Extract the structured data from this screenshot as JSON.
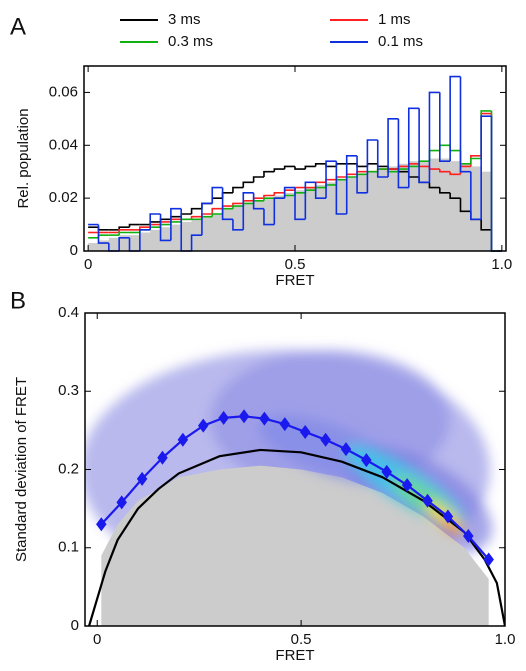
{
  "chart_data": [
    {
      "type": "histogram",
      "panel": "A",
      "xlabel": "FRET",
      "ylabel": "Rel. population",
      "bins": [
        0,
        0.025,
        0.05,
        0.075,
        0.1,
        0.125,
        0.15,
        0.175,
        0.2,
        0.225,
        0.25,
        0.275,
        0.3,
        0.325,
        0.35,
        0.375,
        0.4,
        0.425,
        0.45,
        0.475,
        0.5,
        0.525,
        0.55,
        0.575,
        0.6,
        0.625,
        0.65,
        0.675,
        0.7,
        0.725,
        0.75,
        0.775,
        0.8,
        0.825,
        0.85,
        0.875,
        0.9,
        0.925,
        0.95,
        0.975,
        1.0
      ],
      "series": [
        {
          "name": "3 ms",
          "color": "#000000",
          "values": [
            0.009,
            0.008,
            0.008,
            0.009,
            0.01,
            0.01,
            0.011,
            0.012,
            0.013,
            0.014,
            0.016,
            0.018,
            0.02,
            0.022,
            0.024,
            0.026,
            0.028,
            0.03,
            0.031,
            0.032,
            0.031,
            0.032,
            0.033,
            0.032,
            0.033,
            0.033,
            0.032,
            0.033,
            0.032,
            0.031,
            0.03,
            0.028,
            0.026,
            0.024,
            0.022,
            0.02,
            0.015,
            0.012,
            0.008,
            0
          ]
        },
        {
          "name": "1 ms",
          "color": "#ff2020",
          "values": [
            0.007,
            0.007,
            0.007,
            0.008,
            0.008,
            0.009,
            0.01,
            0.011,
            0.012,
            0.012,
            0.013,
            0.014,
            0.016,
            0.017,
            0.018,
            0.019,
            0.02,
            0.021,
            0.022,
            0.023,
            0.024,
            0.024,
            0.026,
            0.027,
            0.028,
            0.029,
            0.03,
            0.03,
            0.031,
            0.031,
            0.032,
            0.033,
            0.032,
            0.031,
            0.03,
            0.029,
            0.032,
            0.036,
            0.052,
            0
          ]
        },
        {
          "name": "0.3 ms",
          "color": "#10b010",
          "values": [
            0.005,
            0.006,
            0.006,
            0.007,
            0.007,
            0.008,
            0.009,
            0.01,
            0.011,
            0.012,
            0.012,
            0.013,
            0.014,
            0.016,
            0.017,
            0.018,
            0.019,
            0.02,
            0.02,
            0.021,
            0.022,
            0.023,
            0.024,
            0.025,
            0.027,
            0.028,
            0.029,
            0.03,
            0.031,
            0.03,
            0.031,
            0.032,
            0.034,
            0.038,
            0.04,
            0.038,
            0.033,
            0.035,
            0.053,
            0
          ]
        },
        {
          "name": "0.1 ms",
          "color": "#1030e0",
          "values": [
            0.01,
            0.003,
            0,
            0.005,
            0,
            0.008,
            0.014,
            0.004,
            0.016,
            0,
            0.006,
            0.018,
            0.024,
            0.012,
            0.008,
            0.022,
            0.016,
            0.01,
            0.02,
            0.024,
            0.012,
            0.026,
            0.02,
            0.034,
            0.014,
            0.036,
            0.022,
            0.042,
            0.028,
            0.05,
            0.024,
            0.054,
            0.026,
            0.06,
            0.034,
            0.066,
            0.03,
            0.012,
            0.051,
            0
          ]
        },
        {
          "color": "#cccccc",
          "fill": true,
          "values": [
            0.003,
            0.004,
            0.005,
            0.006,
            0.006,
            0.007,
            0.008,
            0.009,
            0.01,
            0.011,
            0.012,
            0.013,
            0.014,
            0.016,
            0.017,
            0.018,
            0.019,
            0.02,
            0.021,
            0.022,
            0.023,
            0.024,
            0.025,
            0.026,
            0.027,
            0.028,
            0.029,
            0.03,
            0.031,
            0.032,
            0.033,
            0.034,
            0.034,
            0.035,
            0.035,
            0.034,
            0.033,
            0.032,
            0.03,
            0
          ]
        }
      ],
      "xlim": [
        -0.01,
        1.01
      ],
      "xticks": [
        0,
        0.5,
        {
          "value": 1,
          "label": "1.0"
        }
      ],
      "ylim": [
        0,
        0.07
      ],
      "yticks": [
        0,
        0.02,
        0.04,
        0.06
      ]
    },
    {
      "type": "line",
      "panel": "B",
      "xlabel": "FRET",
      "ylabel": "Standard deviation of FRET",
      "series": [
        {
          "type": "area",
          "color": "#cccccc",
          "x": [
            0.01,
            0.05,
            0.1,
            0.2,
            0.3,
            0.4,
            0.5,
            0.6,
            0.7,
            0.8,
            0.9,
            0.96
          ],
          "values": [
            0.09,
            0.13,
            0.16,
            0.19,
            0.2,
            0.205,
            0.2,
            0.19,
            0.17,
            0.14,
            0.1,
            0.06
          ]
        },
        {
          "type": "line",
          "color": "#000000",
          "x": [
            -0.02,
            0.02,
            0.05,
            0.1,
            0.15,
            0.2,
            0.3,
            0.4,
            0.5,
            0.6,
            0.7,
            0.8,
            0.9,
            0.95,
            0.98,
            1.0
          ],
          "values": [
            0,
            0.07,
            0.11,
            0.15,
            0.175,
            0.195,
            0.217,
            0.225,
            0.222,
            0.21,
            0.19,
            0.16,
            0.12,
            0.085,
            0.055,
            0
          ]
        },
        {
          "type": "line",
          "marker": "diamond",
          "color": "#1a1aee",
          "x": [
            0.01,
            0.06,
            0.11,
            0.16,
            0.21,
            0.26,
            0.31,
            0.36,
            0.41,
            0.46,
            0.51,
            0.56,
            0.61,
            0.66,
            0.71,
            0.76,
            0.81,
            0.86,
            0.91,
            0.96
          ],
          "values": [
            0.13,
            0.158,
            0.188,
            0.215,
            0.238,
            0.256,
            0.266,
            0.268,
            0.265,
            0.258,
            0.248,
            0.238,
            0.226,
            0.212,
            0.197,
            0.18,
            0.16,
            0.14,
            0.115,
            0.085
          ]
        }
      ],
      "xlim": [
        -0.03,
        1.0
      ],
      "xticks": [
        0,
        0.5,
        {
          "value": 1,
          "label": "1.0"
        }
      ],
      "ylim": [
        0,
        0.4
      ],
      "yticks": [
        0,
        0.1,
        0.2,
        0.3,
        0.4
      ]
    }
  ]
}
